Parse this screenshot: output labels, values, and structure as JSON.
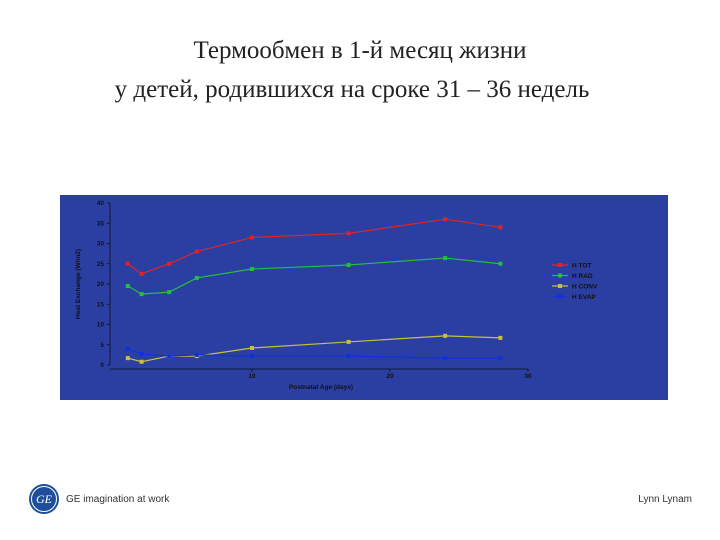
{
  "slide": {
    "title": [
      "Термообмен в 1-й месяц жизни",
      "у детей, родившихся на сроке 31 – 36 недель"
    ],
    "logo": "GE",
    "tagline": "GE imagination at work",
    "author": "Lynn Lynam"
  },
  "chart_data": {
    "type": "line",
    "x_label": "Postnatal Age (days)",
    "y_label": "Heat Exchange (W/m2)",
    "x": [
      1,
      2,
      4,
      6,
      10,
      17,
      24,
      28
    ],
    "xlim": [
      0,
      30
    ],
    "xticks": [
      10,
      20,
      30
    ],
    "ylim": [
      0,
      40
    ],
    "yticks": [
      0,
      5,
      10,
      15,
      20,
      25,
      30,
      35,
      40
    ],
    "legend": "right",
    "series": [
      {
        "name": "H TOT",
        "color": "#e02424",
        "values": [
          25,
          22.5,
          25,
          28,
          31.5,
          32.5,
          36,
          34
        ]
      },
      {
        "name": "H RAD",
        "color": "#22c040",
        "values": [
          19.5,
          17.5,
          18,
          21.5,
          23.7,
          24.7,
          26.4,
          25
        ]
      },
      {
        "name": "H CONV",
        "color": "#c8c040",
        "values": [
          1.7,
          0.8,
          2.2,
          2.2,
          4.2,
          5.7,
          7.2,
          6.7
        ]
      },
      {
        "name": "H EVAP",
        "color": "#1030e0",
        "values": [
          4,
          2.7,
          2.2,
          2.5,
          2.2,
          2.2,
          1.7,
          1.7
        ]
      }
    ]
  }
}
